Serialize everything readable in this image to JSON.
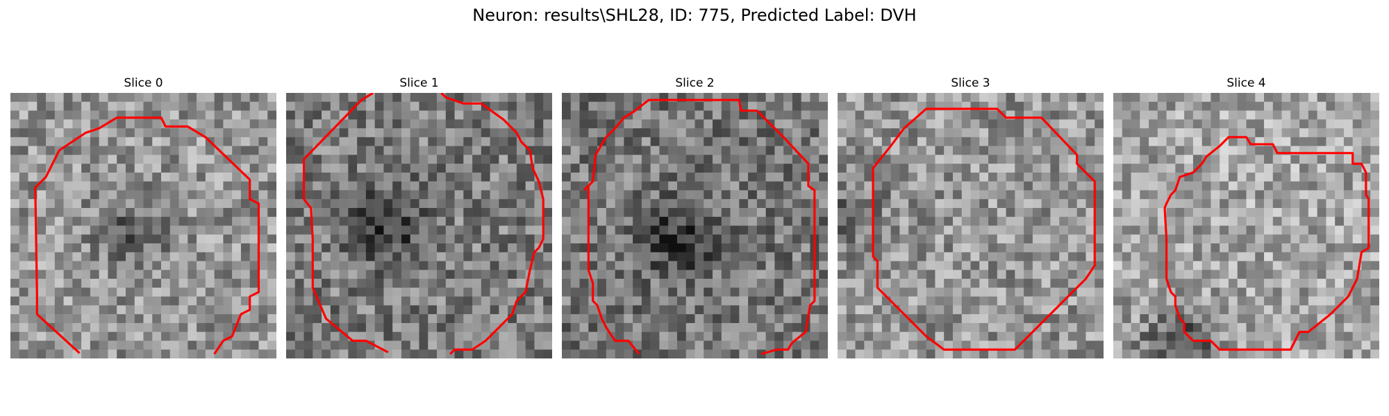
{
  "figure": {
    "suptitle": "Neuron: results\\SHL28, ID: 775, Predicted Label: DVH",
    "grid_size": 30,
    "contour_color": "#ff0000",
    "colormap": "gray"
  },
  "slices": [
    {
      "title": "Slice 0",
      "seed": 11,
      "dark_center": [
        0.47,
        0.53
      ],
      "dark_strength": 55,
      "brightness": 150
    },
    {
      "title": "Slice 1",
      "seed": 23,
      "dark_center": [
        0.38,
        0.5
      ],
      "dark_strength": 70,
      "brightness": 125
    },
    {
      "title": "Slice 2",
      "seed": 37,
      "dark_center": [
        0.45,
        0.55
      ],
      "dark_strength": 70,
      "brightness": 120
    },
    {
      "title": "Slice 3",
      "seed": 41,
      "dark_center": [
        0.05,
        0.45
      ],
      "dark_strength": 40,
      "brightness": 150
    },
    {
      "title": "Slice 4",
      "seed": 53,
      "dark_center": [
        0.25,
        0.95
      ],
      "dark_strength": 90,
      "brightness": 165
    }
  ]
}
